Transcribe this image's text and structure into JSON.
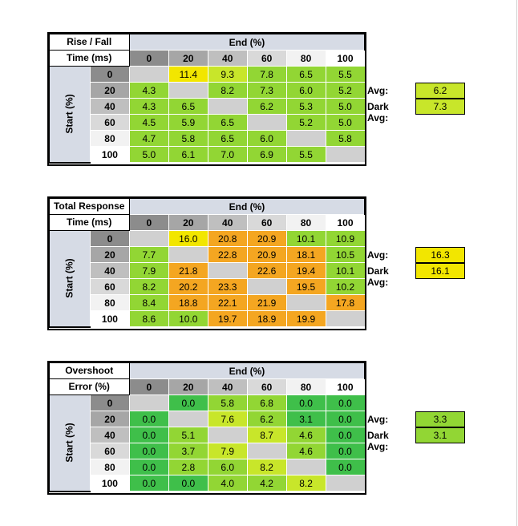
{
  "colors": {
    "header_bg": "#d6dbe5",
    "diag": "#d0d0d0",
    "green_dark": "#3fbf4a",
    "green": "#92d634",
    "yellow_green": "#c8e62a",
    "yellow": "#f2e600",
    "orange": "#f4a621"
  },
  "chart_data": [
    {
      "type": "table",
      "title_line1": "Rise / Fall",
      "title_line2": "Time (ms)",
      "col_header": "End (%)",
      "row_header": "Start (%)",
      "levels": [
        "0",
        "20",
        "40",
        "60",
        "80",
        "100"
      ],
      "values": [
        [
          "",
          "11.4",
          "9.3",
          "7.8",
          "6.5",
          "5.5"
        ],
        [
          "4.3",
          "",
          "8.2",
          "7.3",
          "6.0",
          "5.2"
        ],
        [
          "4.3",
          "6.5",
          "",
          "6.2",
          "5.3",
          "5.0"
        ],
        [
          "4.5",
          "5.9",
          "6.5",
          "",
          "5.2",
          "5.0"
        ],
        [
          "4.7",
          "5.8",
          "6.5",
          "6.0",
          "",
          "5.8"
        ],
        [
          "5.0",
          "6.1",
          "7.0",
          "6.9",
          "5.5",
          ""
        ]
      ],
      "colors": [
        [
          "diag",
          "yellow",
          "yellow_green",
          "green",
          "green",
          "green"
        ],
        [
          "green",
          "diag",
          "green",
          "green",
          "green",
          "green"
        ],
        [
          "green",
          "green",
          "diag",
          "green",
          "green",
          "green"
        ],
        [
          "green",
          "green",
          "green",
          "diag",
          "green",
          "green"
        ],
        [
          "green",
          "green",
          "green",
          "green",
          "diag",
          "green"
        ],
        [
          "green",
          "green",
          "green",
          "green",
          "green",
          "diag"
        ]
      ],
      "avg_label": "Avg:",
      "avg_value": "6.2",
      "avg_color": "yellow_green",
      "dark_avg_label": "Dark Avg:",
      "dark_avg_value": "7.3",
      "dark_avg_color": "yellow_green"
    },
    {
      "type": "table",
      "title_line1": "Total Response",
      "title_line2": "Time (ms)",
      "col_header": "End (%)",
      "row_header": "Start (%)",
      "levels": [
        "0",
        "20",
        "40",
        "60",
        "80",
        "100"
      ],
      "values": [
        [
          "",
          "16.0",
          "20.8",
          "20.9",
          "10.1",
          "10.9"
        ],
        [
          "7.7",
          "",
          "22.8",
          "20.9",
          "18.1",
          "10.5"
        ],
        [
          "7.9",
          "21.8",
          "",
          "22.6",
          "19.4",
          "10.1"
        ],
        [
          "8.2",
          "20.2",
          "23.3",
          "",
          "19.5",
          "10.2"
        ],
        [
          "8.4",
          "18.8",
          "22.1",
          "21.9",
          "",
          "17.8"
        ],
        [
          "8.6",
          "10.0",
          "19.7",
          "18.9",
          "19.9",
          ""
        ]
      ],
      "colors": [
        [
          "diag",
          "yellow",
          "orange",
          "orange",
          "green",
          "green"
        ],
        [
          "green",
          "diag",
          "orange",
          "orange",
          "orange",
          "green"
        ],
        [
          "green",
          "orange",
          "diag",
          "orange",
          "orange",
          "green"
        ],
        [
          "green",
          "orange",
          "orange",
          "diag",
          "orange",
          "green"
        ],
        [
          "green",
          "orange",
          "orange",
          "orange",
          "diag",
          "orange"
        ],
        [
          "green",
          "green",
          "orange",
          "orange",
          "orange",
          "diag"
        ]
      ],
      "avg_label": "Avg:",
      "avg_value": "16.3",
      "avg_color": "yellow",
      "dark_avg_label": "Dark Avg:",
      "dark_avg_value": "16.1",
      "dark_avg_color": "yellow"
    },
    {
      "type": "table",
      "title_line1": "Overshoot",
      "title_line2": "Error (%)",
      "col_header": "End (%)",
      "row_header": "Start (%)",
      "levels": [
        "0",
        "20",
        "40",
        "60",
        "80",
        "100"
      ],
      "values": [
        [
          "",
          "0.0",
          "5.8",
          "6.8",
          "0.0",
          "0.0"
        ],
        [
          "0.0",
          "",
          "7.6",
          "6.2",
          "3.1",
          "0.0"
        ],
        [
          "0.0",
          "5.1",
          "",
          "8.7",
          "4.6",
          "0.0"
        ],
        [
          "0.0",
          "3.7",
          "7.9",
          "",
          "4.6",
          "0.0"
        ],
        [
          "0.0",
          "2.8",
          "6.0",
          "8.2",
          "",
          "0.0"
        ],
        [
          "0.0",
          "0.0",
          "4.0",
          "4.2",
          "8.2",
          ""
        ]
      ],
      "colors": [
        [
          "diag",
          "green_dark",
          "green",
          "green",
          "green_dark",
          "green_dark"
        ],
        [
          "green_dark",
          "diag",
          "yellow_green",
          "green",
          "green_dark",
          "green_dark"
        ],
        [
          "green_dark",
          "green",
          "diag",
          "yellow_green",
          "green",
          "green_dark"
        ],
        [
          "green_dark",
          "green",
          "yellow_green",
          "diag",
          "green",
          "green_dark"
        ],
        [
          "green_dark",
          "green",
          "green",
          "yellow_green",
          "diag",
          "green_dark"
        ],
        [
          "green_dark",
          "green_dark",
          "green",
          "green",
          "yellow_green",
          "diag"
        ]
      ],
      "avg_label": "Avg:",
      "avg_value": "3.3",
      "avg_color": "green",
      "dark_avg_label": "Dark Avg:",
      "dark_avg_value": "3.1",
      "dark_avg_color": "green"
    }
  ]
}
